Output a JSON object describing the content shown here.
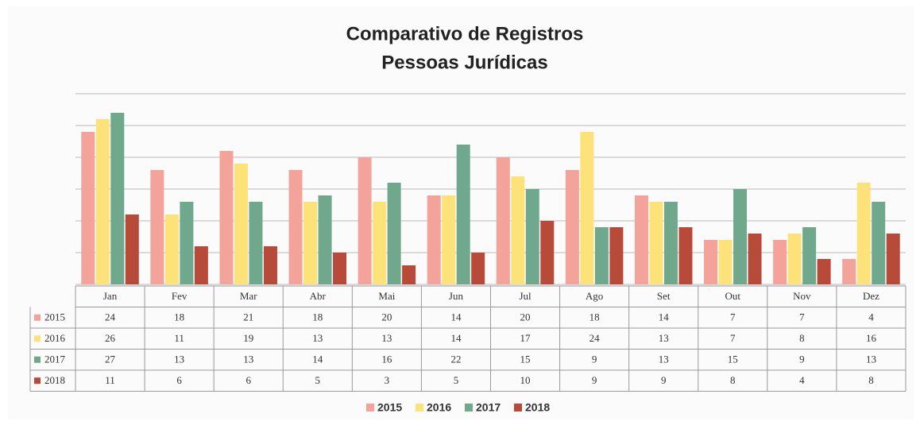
{
  "chart_data": {
    "type": "bar",
    "title": [
      "Comparativo  de Registros",
      "Pessoas Jurídicas"
    ],
    "categories": [
      "Jan",
      "Fev",
      "Mar",
      "Abr",
      "Mai",
      "Jun",
      "Jul",
      "Ago",
      "Set",
      "Out",
      "Nov",
      "Dez"
    ],
    "series": [
      {
        "name": "2015",
        "color": "#f4a39a",
        "values": [
          24,
          18,
          21,
          18,
          20,
          14,
          20,
          18,
          14,
          7,
          7,
          4
        ]
      },
      {
        "name": "2016",
        "color": "#fde27a",
        "values": [
          26,
          11,
          19,
          13,
          13,
          14,
          17,
          24,
          13,
          7,
          8,
          16
        ]
      },
      {
        "name": "2017",
        "color": "#6fa88d",
        "values": [
          27,
          13,
          13,
          14,
          16,
          22,
          15,
          9,
          13,
          15,
          9,
          13
        ]
      },
      {
        "name": "2018",
        "color": "#b84a3a",
        "values": [
          11,
          6,
          6,
          5,
          3,
          5,
          10,
          9,
          9,
          8,
          4,
          8
        ]
      }
    ],
    "ylim": [
      0,
      30
    ],
    "yticks": [
      0,
      5,
      10,
      15,
      20,
      25,
      30
    ],
    "grid": true,
    "legend": "bottom"
  }
}
